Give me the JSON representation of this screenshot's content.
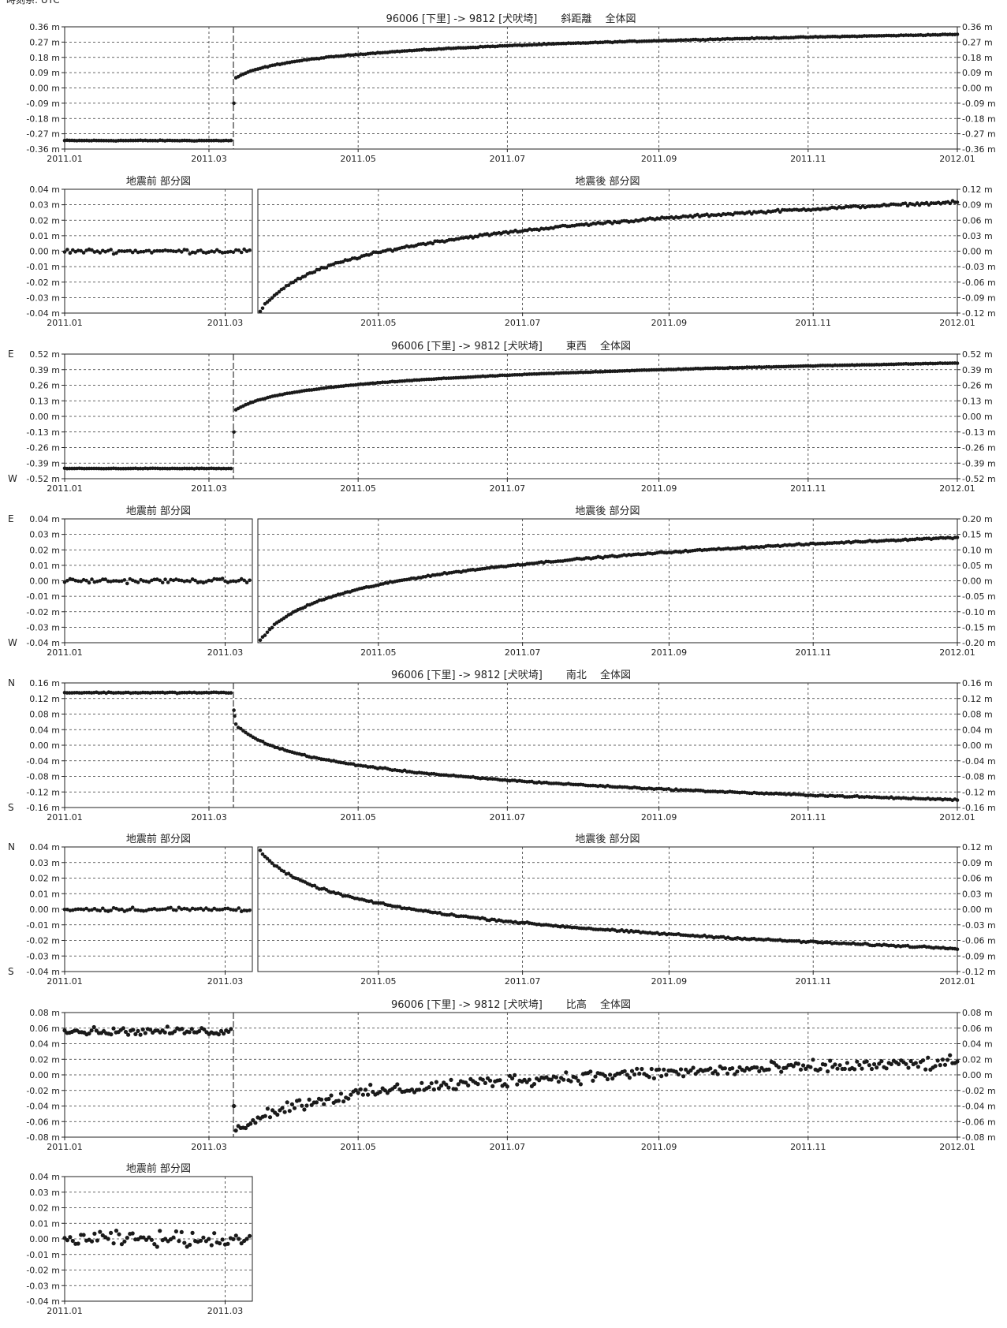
{
  "timezone_label": "時刻系: UTC",
  "colors": {
    "marker": "#1a1a1a",
    "grid": "#333333",
    "frame": "#222222"
  },
  "chart_data": [
    {
      "id": "slope-overall",
      "type": "scatter",
      "title": "96006 [下里] -> 9812 [犬吠埼]　　 斜距離　 全体図",
      "x_ticks": [
        "2011.01",
        "2011.03",
        "2011.05",
        "2011.07",
        "2011.09",
        "2011.11",
        "2012.01"
      ],
      "x_range": [
        "2011-01-01",
        "2012-01-01"
      ],
      "y_ticks": [
        "0.36 m",
        "0.27 m",
        "0.18 m",
        "0.09 m",
        "0.00 m",
        "-0.09 m",
        "-0.18 m",
        "-0.27 m",
        "-0.36 m"
      ],
      "y_ticks_right": [
        "0.36 m",
        "0.27 m",
        "0.18 m",
        "0.09 m",
        "0.00 m",
        "-0.09 m",
        "-0.18 m",
        "-0.27 m",
        "-0.36 m"
      ],
      "ylim": [
        -0.36,
        0.36
      ],
      "grid": true,
      "earthquake_line": "2011-03-11",
      "pre": {
        "value": -0.31,
        "noise": 0.002
      },
      "jump_points": [
        -0.09
      ],
      "post": {
        "start": 0.05,
        "end": 0.315,
        "noise": 0.002
      }
    },
    {
      "id": "slope-before",
      "type": "scatter",
      "title": "地震前 部分図",
      "x_ticks": [
        "2011.01",
        "2011.03"
      ],
      "x_range": [
        "2011-01-01",
        "2011-03-11"
      ],
      "y_ticks": [
        "0.04 m",
        "0.03 m",
        "0.02 m",
        "0.01 m",
        "0.00 m",
        "-0.01 m",
        "-0.02 m",
        "-0.03 m",
        "-0.04 m"
      ],
      "ylim": [
        -0.04,
        0.04
      ],
      "grid": true,
      "flat": {
        "value": 0.0,
        "noise": 0.0012
      }
    },
    {
      "id": "slope-after",
      "type": "scatter",
      "title": "地震後 部分図",
      "x_ticks": [
        "2011.05",
        "2011.07",
        "2011.09",
        "2011.11",
        "2012.01"
      ],
      "x_range": [
        "2011-03-11",
        "2012-01-01"
      ],
      "y_ticks_right": [
        "0.12 m",
        "0.09 m",
        "0.06 m",
        "0.03 m",
        "0.00 m",
        "-0.03 m",
        "-0.06 m",
        "-0.09 m",
        "-0.12 m"
      ],
      "ylim": [
        -0.12,
        0.12
      ],
      "grid": true,
      "post": {
        "start": -0.125,
        "end": 0.095,
        "noise": 0.002
      }
    },
    {
      "id": "ew-overall",
      "type": "scatter",
      "title": "96006 [下里] -> 9812 [犬吠埼]　　 東西　 全体図",
      "x_ticks": [
        "2011.01",
        "2011.03",
        "2011.05",
        "2011.07",
        "2011.09",
        "2011.11",
        "2012.01"
      ],
      "x_range": [
        "2011-01-01",
        "2012-01-01"
      ],
      "y_ticks": [
        "0.52 m",
        "0.39 m",
        "0.26 m",
        "0.13 m",
        "0.00 m",
        "-0.13 m",
        "-0.26 m",
        "-0.39 m",
        "-0.52 m"
      ],
      "y_ticks_right": [
        "0.52 m",
        "0.39 m",
        "0.26 m",
        "0.13 m",
        "0.00 m",
        "-0.13 m",
        "-0.26 m",
        "-0.39 m",
        "-0.52 m"
      ],
      "direction_top": "E",
      "direction_bottom": "W",
      "ylim": [
        -0.52,
        0.52
      ],
      "grid": true,
      "earthquake_line": "2011-03-11",
      "pre": {
        "value": -0.435,
        "noise": 0.002
      },
      "jump_points": [
        -0.13
      ],
      "post": {
        "start": 0.04,
        "end": 0.445,
        "noise": 0.002
      }
    },
    {
      "id": "ew-before",
      "type": "scatter",
      "title": "地震前 部分図",
      "x_ticks": [
        "2011.01",
        "2011.03"
      ],
      "x_range": [
        "2011-01-01",
        "2011-03-11"
      ],
      "y_ticks": [
        "0.04 m",
        "0.03 m",
        "0.02 m",
        "0.01 m",
        "0.00 m",
        "-0.01 m",
        "-0.02 m",
        "-0.03 m",
        "-0.04 m"
      ],
      "direction_top": "E",
      "direction_bottom": "W",
      "ylim": [
        -0.04,
        0.04
      ],
      "grid": true,
      "flat": {
        "value": 0.0,
        "noise": 0.0012
      }
    },
    {
      "id": "ew-after",
      "type": "scatter",
      "title": "地震後 部分図",
      "x_ticks": [
        "2011.05",
        "2011.07",
        "2011.09",
        "2011.11",
        "2012.01"
      ],
      "x_range": [
        "2011-03-11",
        "2012-01-01"
      ],
      "y_ticks_right": [
        "0.20 m",
        "0.15 m",
        "0.10 m",
        "0.05 m",
        "0.00 m",
        "-0.05 m",
        "-0.10 m",
        "-0.15 m",
        "-0.20 m"
      ],
      "ylim": [
        -0.2,
        0.2
      ],
      "grid": true,
      "post": {
        "start": -0.205,
        "end": 0.14,
        "noise": 0.002
      }
    },
    {
      "id": "ns-overall",
      "type": "scatter",
      "title": "96006 [下里] -> 9812 [犬吠埼]　　 南北　 全体図",
      "x_ticks": [
        "2011.01",
        "2011.03",
        "2011.05",
        "2011.07",
        "2011.09",
        "2011.11",
        "2012.01"
      ],
      "x_range": [
        "2011-01-01",
        "2012-01-01"
      ],
      "y_ticks": [
        "0.16 m",
        "0.12 m",
        "0.08 m",
        "0.04 m",
        "0.00 m",
        "-0.04 m",
        "-0.08 m",
        "-0.12 m",
        "-0.16 m"
      ],
      "y_ticks_right": [
        "0.16 m",
        "0.12 m",
        "0.08 m",
        "0.04 m",
        "0.00 m",
        "-0.04 m",
        "-0.08 m",
        "-0.12 m",
        "-0.16 m"
      ],
      "direction_top": "N",
      "direction_bottom": "S",
      "ylim": [
        -0.16,
        0.16
      ],
      "grid": true,
      "earthquake_line": "2011-03-11",
      "pre": {
        "value": 0.135,
        "noise": 0.0012
      },
      "jump_points": [
        0.09,
        0.075
      ],
      "post": {
        "start": 0.06,
        "end": -0.14,
        "noise": 0.0015
      }
    },
    {
      "id": "ns-before",
      "type": "scatter",
      "title": "地震前 部分図",
      "x_ticks": [
        "2011.01",
        "2011.03"
      ],
      "x_range": [
        "2011-01-01",
        "2011-03-11"
      ],
      "y_ticks": [
        "0.04 m",
        "0.03 m",
        "0.02 m",
        "0.01 m",
        "0.00 m",
        "-0.01 m",
        "-0.02 m",
        "-0.03 m",
        "-0.04 m"
      ],
      "direction_top": "N",
      "direction_bottom": "S",
      "ylim": [
        -0.04,
        0.04
      ],
      "grid": true,
      "flat": {
        "value": 0.0,
        "noise": 0.0012
      }
    },
    {
      "id": "ns-after",
      "type": "scatter",
      "title": "地震後 部分図",
      "x_ticks": [
        "2011.05",
        "2011.07",
        "2011.09",
        "2011.11",
        "2012.01"
      ],
      "x_range": [
        "2011-03-11",
        "2012-01-01"
      ],
      "y_ticks_right": [
        "0.12 m",
        "0.09 m",
        "0.06 m",
        "0.03 m",
        "0.00 m",
        "-0.03 m",
        "-0.06 m",
        "-0.09 m",
        "-0.12 m"
      ],
      "ylim": [
        -0.12,
        0.12
      ],
      "grid": true,
      "post": {
        "start": 0.12,
        "end": -0.075,
        "noise": 0.0015
      }
    },
    {
      "id": "height-overall",
      "type": "scatter",
      "title": "96006 [下里] -> 9812 [犬吠埼]　　 比高　 全体図",
      "x_ticks": [
        "2011.01",
        "2011.03",
        "2011.05",
        "2011.07",
        "2011.09",
        "2011.11",
        "2012.01"
      ],
      "x_range": [
        "2011-01-01",
        "2012-01-01"
      ],
      "y_ticks": [
        "0.08 m",
        "0.06 m",
        "0.04 m",
        "0.02 m",
        "0.00 m",
        "-0.02 m",
        "-0.04 m",
        "-0.06 m",
        "-0.08 m"
      ],
      "y_ticks_right": [
        "0.08 m",
        "0.06 m",
        "0.04 m",
        "0.02 m",
        "0.00 m",
        "-0.02 m",
        "-0.04 m",
        "-0.06 m",
        "-0.08 m"
      ],
      "ylim": [
        -0.08,
        0.08
      ],
      "grid": true,
      "earthquake_line": "2011-03-11",
      "pre": {
        "value": 0.056,
        "noise": 0.004
      },
      "jump_points": [
        -0.04
      ],
      "post": {
        "start": -0.075,
        "end": 0.015,
        "noise": 0.007
      }
    },
    {
      "id": "height-before",
      "type": "scatter",
      "title": "地震前 部分図",
      "x_ticks": [
        "2011.01",
        "2011.03"
      ],
      "x_range": [
        "2011-01-01",
        "2011-03-11"
      ],
      "y_ticks": [
        "0.04 m",
        "0.03 m",
        "0.02 m",
        "0.01 m",
        "0.00 m",
        "-0.01 m",
        "-0.02 m",
        "-0.03 m",
        "-0.04 m"
      ],
      "ylim": [
        -0.04,
        0.04
      ],
      "grid": true,
      "flat": {
        "value": 0.0,
        "noise": 0.004
      }
    }
  ]
}
